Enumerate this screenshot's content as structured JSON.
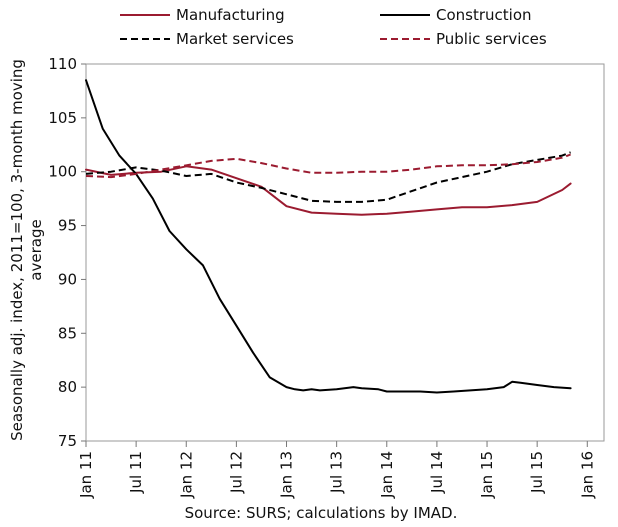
{
  "chart_data": {
    "type": "line",
    "ylabel_line1": "Seasonally adj. index, 2011=100, 3-month moving",
    "ylabel_line2": "average",
    "source": "Source: SURS; calculations by IMAD.",
    "ylim": [
      75,
      110
    ],
    "y_ticks": [
      75,
      80,
      85,
      90,
      95,
      100,
      105,
      110
    ],
    "x_tick_labels": [
      "Jan 11",
      "Jul 11",
      "Jan 12",
      "Jul 12",
      "Jan 13",
      "Jul 13",
      "Jan 14",
      "Jul 14",
      "Jan 15",
      "Jul 15",
      "Jan 16"
    ],
    "x_tick_months": [
      0,
      6,
      12,
      18,
      24,
      30,
      36,
      42,
      48,
      54,
      60
    ],
    "legend_placement": "top",
    "grid": false,
    "series": [
      {
        "name": "Manufacturing",
        "color": "#9b1b30",
        "dash": "solid",
        "months": [
          0,
          3,
          6,
          9,
          12,
          15,
          18,
          21,
          24,
          27,
          30,
          33,
          36,
          39,
          42,
          45,
          48,
          51,
          54,
          57,
          58
        ],
        "values": [
          100.2,
          99.7,
          99.9,
          100.0,
          100.5,
          100.2,
          99.4,
          98.6,
          96.8,
          96.2,
          96.1,
          96.0,
          96.1,
          96.3,
          96.5,
          96.7,
          96.7,
          96.9,
          97.2,
          98.3,
          98.9
        ]
      },
      {
        "name": "Construction",
        "color": "#000000",
        "dash": "solid",
        "months": [
          0,
          2,
          4,
          6,
          8,
          10,
          12,
          14,
          16,
          18,
          20,
          22,
          24,
          25,
          26,
          27,
          28,
          30,
          32,
          33,
          35,
          36,
          38,
          40,
          42,
          44,
          46,
          48,
          50,
          51,
          52,
          54,
          56,
          58
        ],
        "values": [
          108.5,
          104.0,
          101.5,
          99.8,
          97.5,
          94.5,
          92.8,
          91.3,
          88.2,
          85.7,
          83.2,
          80.9,
          80.0,
          79.8,
          79.7,
          79.8,
          79.7,
          79.8,
          80.0,
          79.9,
          79.8,
          79.6,
          79.6,
          79.6,
          79.5,
          79.6,
          79.7,
          79.8,
          80.0,
          80.5,
          80.4,
          80.2,
          80.0,
          79.9
        ]
      },
      {
        "name": "Market services",
        "color": "#000000",
        "dash": "dashed",
        "months": [
          0,
          3,
          6,
          9,
          12,
          15,
          18,
          21,
          24,
          27,
          30,
          33,
          36,
          39,
          42,
          45,
          48,
          51,
          54,
          57,
          58
        ],
        "values": [
          99.8,
          100.0,
          100.4,
          100.1,
          99.6,
          99.8,
          99.0,
          98.5,
          97.9,
          97.3,
          97.2,
          97.2,
          97.4,
          98.2,
          99.0,
          99.5,
          100.0,
          100.7,
          101.1,
          101.5,
          101.8
        ]
      },
      {
        "name": "Public services",
        "color": "#9b1b30",
        "dash": "dashed",
        "months": [
          0,
          3,
          6,
          9,
          12,
          15,
          18,
          21,
          24,
          27,
          30,
          33,
          36,
          39,
          42,
          45,
          48,
          51,
          54,
          57,
          58
        ],
        "values": [
          99.6,
          99.5,
          99.8,
          100.2,
          100.6,
          101.0,
          101.2,
          100.8,
          100.3,
          99.9,
          99.9,
          100.0,
          100.0,
          100.2,
          100.5,
          100.6,
          100.6,
          100.7,
          100.9,
          101.3,
          101.6
        ]
      }
    ]
  }
}
